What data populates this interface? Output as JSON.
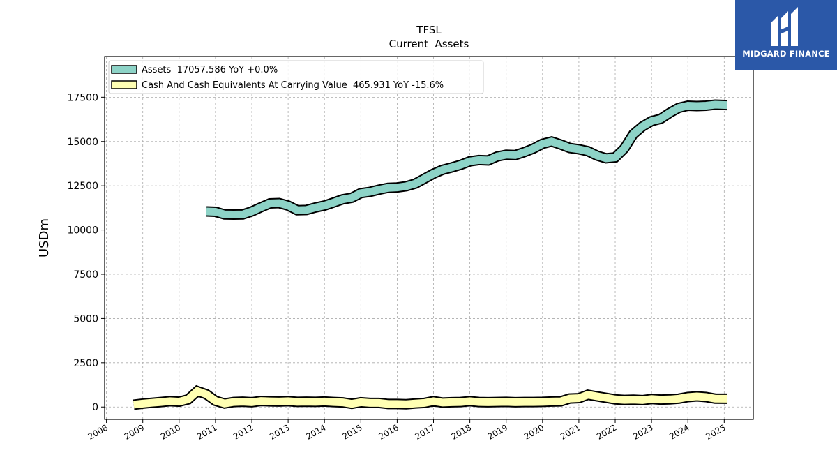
{
  "brand": {
    "name": "MIDGARD FINANCE",
    "bg_color": "#2b58a8"
  },
  "chart_data": {
    "type": "line",
    "title": "TFSL",
    "subtitle": "Current  Assets",
    "ylabel": "USDm",
    "xlabel": "",
    "ylim": [
      -700,
      19800
    ],
    "xlim": [
      2007.95,
      2025.8
    ],
    "yticks": [
      0,
      2500,
      5000,
      7500,
      10000,
      12500,
      15000,
      17500
    ],
    "xticks": [
      2008,
      2009,
      2010,
      2011,
      2012,
      2013,
      2014,
      2015,
      2016,
      2017,
      2018,
      2019,
      2020,
      2021,
      2022,
      2023,
      2024,
      2025
    ],
    "grid": true,
    "legend_position": "top-left",
    "series": [
      {
        "name": "Assets",
        "legend": "Assets  17057.586 YoY +0.0%",
        "color": "#8dd3c7",
        "x": [
          2010.75,
          2011.0,
          2011.25,
          2011.5,
          2011.75,
          2012.0,
          2012.25,
          2012.5,
          2012.75,
          2013.0,
          2013.25,
          2013.5,
          2013.75,
          2014.0,
          2014.25,
          2014.5,
          2014.75,
          2015.0,
          2015.25,
          2015.5,
          2015.75,
          2016.0,
          2016.25,
          2016.5,
          2016.75,
          2017.0,
          2017.25,
          2017.5,
          2017.75,
          2018.0,
          2018.25,
          2018.5,
          2018.75,
          2019.0,
          2019.25,
          2019.5,
          2019.75,
          2020.0,
          2020.25,
          2020.5,
          2020.75,
          2021.0,
          2021.25,
          2021.5,
          2021.75,
          2022.0,
          2022.25,
          2022.5,
          2022.75,
          2023.0,
          2023.25,
          2023.5,
          2023.75,
          2024.0,
          2024.25,
          2024.5,
          2024.75,
          2025.08
        ],
        "values": [
          11050,
          11030,
          10880,
          10870,
          10880,
          11050,
          11280,
          11500,
          11520,
          11380,
          11120,
          11130,
          11270,
          11380,
          11550,
          11730,
          11820,
          12080,
          12150,
          12280,
          12380,
          12400,
          12470,
          12620,
          12900,
          13180,
          13400,
          13530,
          13680,
          13880,
          13950,
          13930,
          14150,
          14250,
          14230,
          14400,
          14600,
          14870,
          15000,
          14830,
          14630,
          14560,
          14450,
          14200,
          14050,
          14100,
          14600,
          15420,
          15850,
          16150,
          16280,
          16620,
          16900,
          17020,
          17000,
          17020,
          17080,
          17057.586
        ]
      },
      {
        "name": "Cash And Cash Equivalents At Carrying Value",
        "legend": "Cash And Cash Equivalents At Carrying Value  465.931 YoY -15.6%",
        "color": "#ffffb3",
        "x": [
          2008.75,
          2009.0,
          2009.25,
          2009.5,
          2009.75,
          2010.0,
          2010.25,
          2010.5,
          2010.75,
          2011.0,
          2011.25,
          2011.5,
          2011.75,
          2012.0,
          2012.25,
          2012.5,
          2012.75,
          2013.0,
          2013.25,
          2013.5,
          2013.75,
          2014.0,
          2014.25,
          2014.5,
          2014.75,
          2015.0,
          2015.25,
          2015.5,
          2015.75,
          2016.0,
          2016.25,
          2016.5,
          2016.75,
          2017.0,
          2017.25,
          2017.5,
          2017.75,
          2018.0,
          2018.25,
          2018.5,
          2018.75,
          2019.0,
          2019.25,
          2019.5,
          2019.75,
          2020.0,
          2020.25,
          2020.5,
          2020.75,
          2021.0,
          2021.25,
          2021.5,
          2021.75,
          2022.0,
          2022.25,
          2022.5,
          2022.75,
          2023.0,
          2023.25,
          2023.5,
          2023.75,
          2024.0,
          2024.25,
          2024.5,
          2024.75,
          2025.08
        ],
        "values": [
          130,
          190,
          240,
          280,
          330,
          300,
          430,
          900,
          720,
          350,
          200,
          280,
          300,
          270,
          340,
          320,
          310,
          330,
          290,
          300,
          290,
          310,
          280,
          260,
          180,
          270,
          230,
          230,
          170,
          170,
          160,
          200,
          230,
          330,
          250,
          270,
          280,
          330,
          280,
          270,
          280,
          290,
          270,
          280,
          280,
          290,
          310,
          320,
          480,
          500,
          690,
          600,
          520,
          430,
          400,
          410,
          390,
          450,
          420,
          430,
          470,
          560,
          600,
          560,
          470,
          465.931
        ]
      }
    ]
  }
}
